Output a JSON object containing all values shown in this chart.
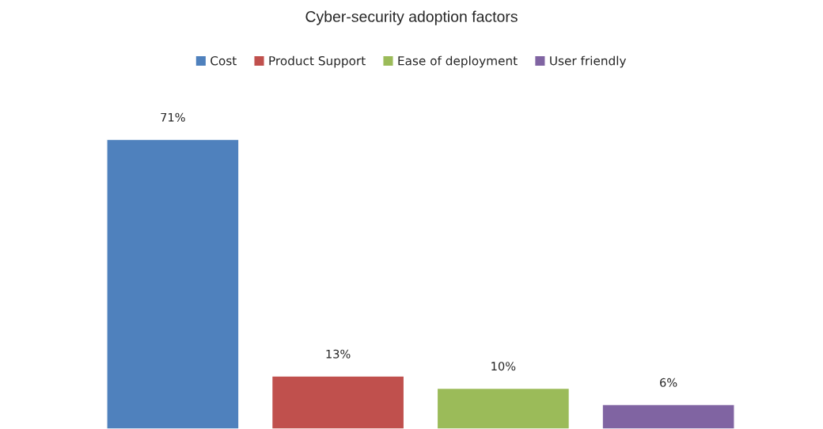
{
  "chart_data": {
    "type": "bar",
    "title": "Cyber-security adoption factors",
    "categories": [
      null
    ],
    "series": [
      {
        "name": "Cost",
        "color": "#4f81bd",
        "values": [
          71
        ],
        "value_labels": [
          "71%"
        ]
      },
      {
        "name": "Product Support",
        "color": "#c0504d",
        "values": [
          13
        ],
        "value_labels": [
          "13%"
        ]
      },
      {
        "name": "Ease of deployment",
        "color": "#9bbb59",
        "values": [
          10
        ],
        "value_labels": [
          "10%"
        ]
      },
      {
        "name": "User friendly",
        "color": "#8064a2",
        "values": [
          6
        ],
        "value_labels": [
          "6%"
        ]
      }
    ],
    "grid": false,
    "legend": "top",
    "tick_labels": false
  }
}
